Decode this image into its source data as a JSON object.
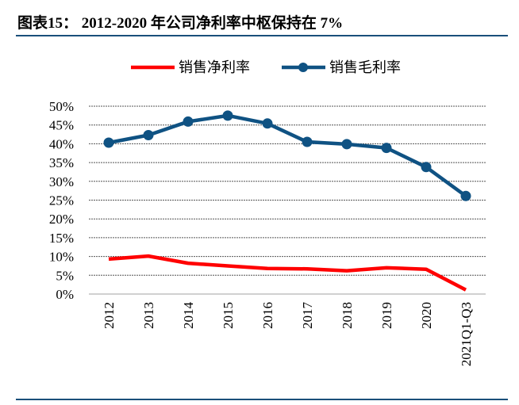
{
  "title": "图表15：  2012-2020 年公司净利率中枢保持在 7%",
  "chart_data": {
    "type": "line",
    "categories": [
      "2012",
      "2013",
      "2014",
      "2015",
      "2016",
      "2017",
      "2018",
      "2019",
      "2020",
      "2021Q1-Q3"
    ],
    "series": [
      {
        "name": "销售净利率",
        "color": "#ff0000",
        "markers": false,
        "values": [
          9.3,
          10.1,
          8.2,
          7.5,
          6.8,
          6.7,
          6.2,
          7.0,
          6.6,
          1.1
        ]
      },
      {
        "name": "销售毛利率",
        "color": "#0f5283",
        "markers": true,
        "values": [
          40.3,
          42.3,
          45.9,
          47.5,
          45.4,
          40.5,
          39.9,
          38.9,
          33.8,
          26.1
        ]
      }
    ],
    "yticks": [
      "0%",
      "5%",
      "10%",
      "15%",
      "20%",
      "25%",
      "30%",
      "35%",
      "40%",
      "45%",
      "50%"
    ],
    "ylim": [
      0,
      50
    ],
    "grid": true,
    "legend": "top"
  }
}
